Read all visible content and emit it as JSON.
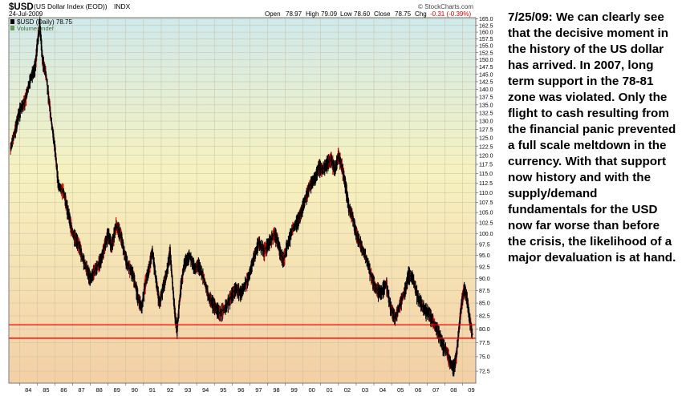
{
  "header": {
    "symbol": "$USD",
    "name": "(US Dollar Index (EOD))",
    "exchange": "INDX",
    "date": "24-Jul-2009",
    "watermark": "© StockCharts.com",
    "quote": {
      "open_label": "Open",
      "open": "78.97",
      "high_label": "High",
      "high": "79.09",
      "low_label": "Low",
      "low": "78.60",
      "close_label": "Close",
      "close": "78.75",
      "chg_label": "Chg",
      "chg": "-0.31 (-0.39%)"
    }
  },
  "legend": {
    "series_label": "$USD (Daily) 78.75",
    "volume_label": "Volume undef"
  },
  "commentary": "7/25/09:  We can clearly see that the decisive moment in the history of the US dollar has arrived.  In 2007, long term support in the 78-81 zone was violated.  Only the flight to cash resulting from the financial panic prevented a full scale meltdown in the currency.  With that support now history and with the supply/demand fundamentals for the USD now far worse than before the crisis, the likelihood of a major devaluation is at hand.",
  "colors": {
    "price_bars": "#000000",
    "down_accents": "#cc0000",
    "support_lines": "#ff0000",
    "background_top": "#cfe9ec",
    "background_mid": "#f6f2bf",
    "background_bottom": "#f4cfa6",
    "grid": "#c8c0a0"
  },
  "chart_data": {
    "type": "line",
    "title": "$USD (Daily) 78.75",
    "x_ticks": [
      "84",
      "85",
      "86",
      "87",
      "88",
      "89",
      "90",
      "91",
      "92",
      "93",
      "94",
      "95",
      "96",
      "97",
      "98",
      "99",
      "00",
      "01",
      "02",
      "03",
      "04",
      "05",
      "06",
      "07",
      "08",
      "09"
    ],
    "y_ticks": [
      "72.5",
      "75.0",
      "77.5",
      "80.0",
      "82.5",
      "85.0",
      "87.5",
      "90.0",
      "92.5",
      "95.0",
      "97.5",
      "100.0",
      "102.5",
      "105.0",
      "107.5",
      "110.0",
      "112.5",
      "115.0",
      "117.5",
      "120.0",
      "122.5",
      "125.0",
      "127.5",
      "130.0",
      "132.5",
      "135.0",
      "137.5",
      "140.0",
      "142.5",
      "145.0",
      "147.5",
      "150.0",
      "152.5",
      "155.0",
      "157.5",
      "160.0",
      "162.5",
      "165.0"
    ],
    "ylim": [
      70.5,
      165.5
    ],
    "xlim": [
      1983.4,
      2009.75
    ],
    "y_scale": "log",
    "grid": true,
    "support_lines": [
      78.3,
      80.8
    ],
    "series": [
      {
        "x": [
          1983.5,
          1983.8,
          1984.0,
          1984.3,
          1984.6,
          1984.9,
          1985.0,
          1985.15,
          1985.3,
          1985.5,
          1985.8,
          1986.0,
          1986.2,
          1986.5,
          1986.8,
          1987.0,
          1987.3,
          1987.6,
          1987.9,
          1988.0,
          1988.3,
          1988.6,
          1988.8,
          1989.0,
          1989.2,
          1989.45,
          1989.7,
          1989.9,
          1990.1,
          1990.4,
          1990.7,
          1990.9,
          1991.1,
          1991.3,
          1991.5,
          1991.7,
          1991.9,
          1992.1,
          1992.3,
          1992.5,
          1992.7,
          1992.8,
          1992.9,
          1993.1,
          1993.3,
          1993.6,
          1993.9,
          1994.1,
          1994.4,
          1994.7,
          1994.9,
          1995.1,
          1995.3,
          1995.6,
          1995.9,
          1996.2,
          1996.5,
          1996.9,
          1997.2,
          1997.5,
          1997.8,
          1998.1,
          1998.4,
          1998.6,
          1998.75,
          1998.9,
          1999.1,
          1999.4,
          1999.7,
          1999.9,
          2000.1,
          2000.4,
          2000.7,
          2000.9,
          2001.1,
          2001.4,
          2001.6,
          2001.8,
          2002.0,
          2002.2,
          2002.4,
          2002.6,
          2002.8,
          2003.0,
          2003.3,
          2003.6,
          2003.9,
          2004.1,
          2004.4,
          2004.7,
          2004.95,
          2005.2,
          2005.5,
          2005.8,
          2005.95,
          2006.2,
          2006.5,
          2006.8,
          2007.1,
          2007.4,
          2007.7,
          2007.9,
          2008.1,
          2008.3,
          2008.5,
          2008.65,
          2008.8,
          2008.95,
          2009.1,
          2009.25,
          2009.4,
          2009.56
        ],
        "y": [
          122,
          128,
          133,
          136,
          143,
          148,
          155,
          163,
          150,
          145,
          130,
          122,
          112,
          110,
          104,
          100,
          98,
          94,
          91,
          90,
          92,
          94,
          97,
          100,
          97,
          102,
          100,
          96,
          93,
          91,
          86,
          84,
          89,
          92,
          96,
          90,
          85,
          88,
          91,
          96,
          86,
          82,
          80,
          88,
          93,
          95,
          92,
          93,
          90,
          86,
          85,
          84,
          83,
          84,
          86,
          88,
          87,
          90,
          94,
          98,
          96,
          98,
          100,
          98,
          95,
          94,
          97,
          101,
          103,
          105,
          108,
          112,
          114,
          117,
          116,
          118,
          119,
          116,
          120,
          117,
          112,
          106,
          104,
          100,
          97,
          94,
          90,
          88,
          87,
          89,
          84,
          82,
          85,
          88,
          91,
          90,
          86,
          84,
          83,
          81,
          79,
          77,
          76,
          74,
          73,
          75,
          80,
          85,
          88,
          86,
          82,
          79
        ]
      }
    ]
  }
}
